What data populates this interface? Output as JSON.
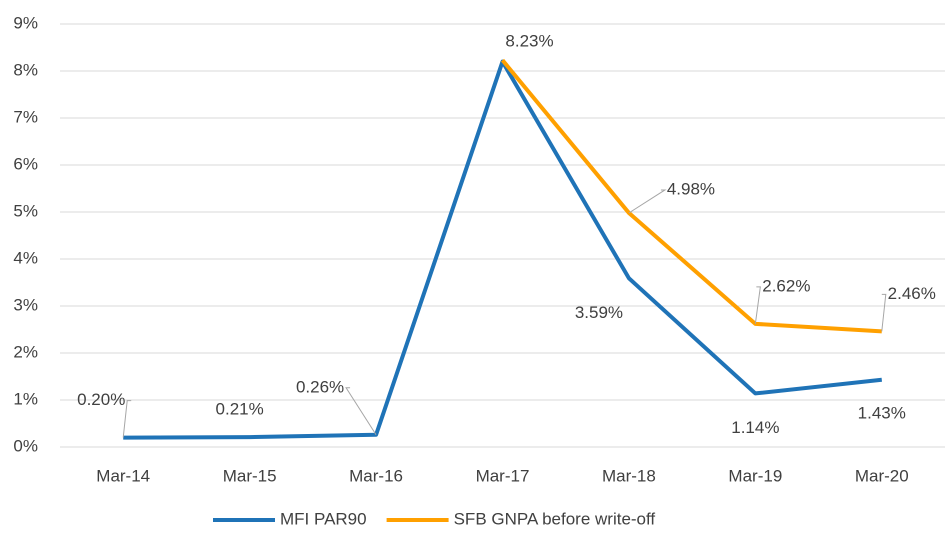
{
  "chart_data": {
    "type": "line",
    "categories": [
      "Mar-14",
      "Mar-15",
      "Mar-16",
      "Mar-17",
      "Mar-18",
      "Mar-19",
      "Mar-20"
    ],
    "series": [
      {
        "name": "MFI PAR90",
        "color": "#1f73b7",
        "values": [
          0.2,
          0.21,
          0.26,
          8.2,
          3.59,
          1.14,
          1.43
        ],
        "value_labels": [
          "0.20%",
          "0.21%",
          "0.26%",
          null,
          "3.59%",
          "1.14%",
          "1.43%"
        ]
      },
      {
        "name": "SFB GNPA before write-off",
        "color": "#ffa000",
        "values": [
          null,
          null,
          null,
          8.23,
          4.98,
          2.62,
          2.46
        ],
        "value_labels": [
          null,
          null,
          null,
          "8.23%",
          "4.98%",
          "2.62%",
          "2.46%"
        ]
      }
    ],
    "ylim": [
      0,
      9
    ],
    "yticks": [
      {
        "value": 0,
        "label": "0%"
      },
      {
        "value": 1,
        "label": "1%"
      },
      {
        "value": 2,
        "label": "2%"
      },
      {
        "value": 3,
        "label": "3%"
      },
      {
        "value": 4,
        "label": "4%"
      },
      {
        "value": 5,
        "label": "5%"
      },
      {
        "value": 6,
        "label": "6%"
      },
      {
        "value": 7,
        "label": "7%"
      },
      {
        "value": 8,
        "label": "8%"
      },
      {
        "value": 9,
        "label": "9%"
      }
    ],
    "grid": true,
    "legend": "bottom"
  }
}
